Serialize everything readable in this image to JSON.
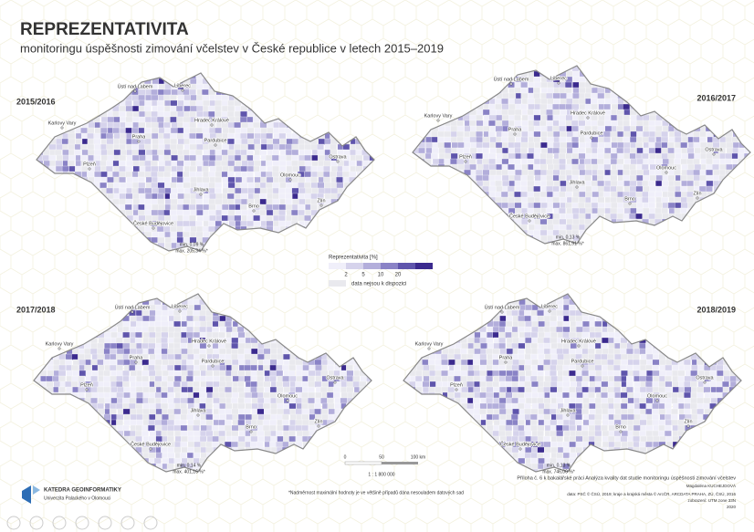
{
  "title": "REPREZENTATIVITA",
  "subtitle": "monitoringu úspěšnosti zimování včelstev v České republice v letech 2015–2019",
  "maps": [
    {
      "label": "2015/2016",
      "min": "min. 0,09 %",
      "max": "max. 205,34 %*"
    },
    {
      "label": "2016/2017",
      "min": "min. 0,13 %",
      "max": "max. 861,91 %*"
    },
    {
      "label": "2017/2018",
      "min": "min. 0,14 %",
      "max": "max. 401,16 %*"
    },
    {
      "label": "2018/2019",
      "min": "min. 0,13 %",
      "max": "max. 746,00 %*"
    }
  ],
  "cities": [
    "Ústí nad Labem",
    "Liberec",
    "Karlovy Vary",
    "Hradec Králové",
    "Praha",
    "Pardubice",
    "Plzeň",
    "Ostrava",
    "Olomouc",
    "Jihlava",
    "Brno",
    "Zlín",
    "České Budějovice"
  ],
  "legend": {
    "title": "Reprezentativita [%]",
    "breaks": [
      "2",
      "5",
      "10",
      "20"
    ],
    "no_data": "data nejsou k dispozici"
  },
  "scale": {
    "ticks": [
      "0",
      "50",
      "100 km"
    ],
    "ratio": "1 : 1 800 000"
  },
  "footnote": "*Nadměrnost maximální hodnoty je ve většině případů dána nesouladem datových sad",
  "credits": [
    "Příloha č. 6 k bakalářské práci Analýza kvality dat studie monitoringu úspěšnosti zimování včelstev",
    "Magdaléna KUCHEJDOVÁ",
    "data: PSČ © ČSÚ, 2019; kraje a krajská města © ArcČR, ARCDATA PRAHA, ZÚ, ČSÚ, 2016",
    "zobrazení: UTM zone 33N",
    "2020"
  ],
  "logo": {
    "name": "KATEDRA GEOINFORMATIKY",
    "university": "Univerzita Palackého v Olomouci"
  }
}
